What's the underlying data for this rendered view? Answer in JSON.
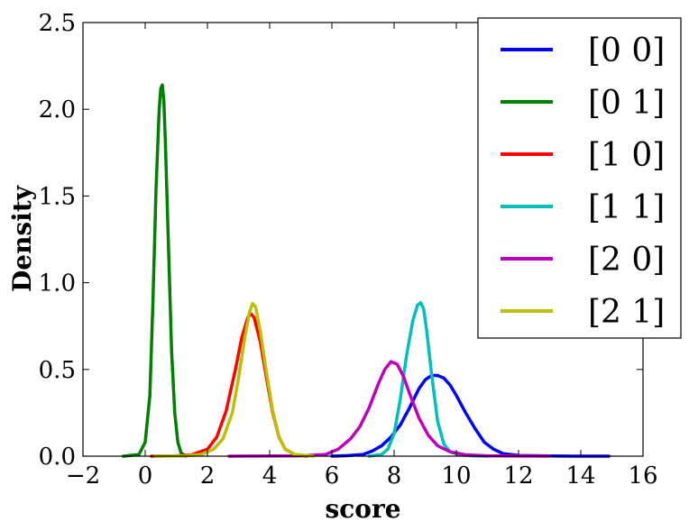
{
  "chart_data": {
    "type": "line",
    "title": "",
    "xlabel": "score",
    "ylabel": "Density",
    "xlim": [
      -2,
      16
    ],
    "ylim": [
      0,
      2.5
    ],
    "xticks": [
      -2,
      0,
      2,
      4,
      6,
      8,
      10,
      12,
      14,
      16
    ],
    "xtick_labels": [
      "−2",
      "0",
      "2",
      "4",
      "6",
      "8",
      "10",
      "12",
      "14",
      "16"
    ],
    "yticks": [
      0.0,
      0.5,
      1.0,
      1.5,
      2.0,
      2.5
    ],
    "ytick_labels": [
      "0.0",
      "0.5",
      "1.0",
      "1.5",
      "2.0",
      "2.5"
    ],
    "grid": false,
    "legend_position": "top-right",
    "series": [
      {
        "name": "[0 0]",
        "color": "#0000ff",
        "x": [
          6.0,
          6.5,
          7.0,
          7.3,
          7.6,
          7.9,
          8.2,
          8.5,
          8.8,
          9.0,
          9.2,
          9.4,
          9.6,
          9.8,
          10.0,
          10.3,
          10.6,
          10.9,
          11.2,
          11.5,
          12.0,
          13.0,
          14.0,
          14.9
        ],
        "y": [
          0.0,
          0.003,
          0.01,
          0.03,
          0.06,
          0.11,
          0.18,
          0.28,
          0.39,
          0.44,
          0.465,
          0.465,
          0.45,
          0.41,
          0.35,
          0.25,
          0.16,
          0.08,
          0.04,
          0.015,
          0.004,
          0.001,
          0.0,
          0.0
        ]
      },
      {
        "name": "[0 1]",
        "color": "#008000",
        "x": [
          -0.7,
          -0.2,
          0.0,
          0.15,
          0.25,
          0.35,
          0.45,
          0.5,
          0.55,
          0.6,
          0.65,
          0.75,
          0.85,
          0.95,
          1.05,
          1.15,
          1.3
        ],
        "y": [
          0.0,
          0.01,
          0.08,
          0.35,
          0.9,
          1.55,
          2.0,
          2.12,
          2.14,
          2.05,
          1.8,
          1.2,
          0.6,
          0.25,
          0.08,
          0.02,
          0.0
        ]
      },
      {
        "name": "[1 0]",
        "color": "#ff0000",
        "x": [
          0.2,
          1.0,
          1.5,
          2.0,
          2.3,
          2.6,
          2.9,
          3.1,
          3.3,
          3.4,
          3.5,
          3.7,
          3.9,
          4.1,
          4.3,
          4.5,
          4.8,
          5.2
        ],
        "y": [
          0.0,
          0.002,
          0.008,
          0.04,
          0.11,
          0.26,
          0.5,
          0.68,
          0.8,
          0.82,
          0.8,
          0.66,
          0.45,
          0.25,
          0.11,
          0.04,
          0.01,
          0.0
        ]
      },
      {
        "name": "[1 1]",
        "color": "#00bfbf",
        "x": [
          7.2,
          7.6,
          7.8,
          8.0,
          8.2,
          8.4,
          8.6,
          8.75,
          8.85,
          8.95,
          9.05,
          9.2,
          9.4,
          9.6,
          9.8,
          10.1,
          10.5,
          11.0
        ],
        "y": [
          0.0,
          0.01,
          0.04,
          0.13,
          0.33,
          0.58,
          0.78,
          0.87,
          0.885,
          0.85,
          0.72,
          0.48,
          0.2,
          0.07,
          0.025,
          0.008,
          0.002,
          0.0
        ]
      },
      {
        "name": "[2 0]",
        "color": "#bf00bf",
        "x": [
          2.7,
          5.0,
          5.8,
          6.2,
          6.6,
          6.9,
          7.2,
          7.5,
          7.7,
          7.9,
          8.1,
          8.3,
          8.5,
          8.8,
          9.1,
          9.4,
          9.8,
          10.3,
          11.0,
          13.0
        ],
        "y": [
          0.0,
          0.002,
          0.01,
          0.04,
          0.1,
          0.17,
          0.28,
          0.42,
          0.5,
          0.545,
          0.53,
          0.46,
          0.36,
          0.22,
          0.12,
          0.06,
          0.025,
          0.008,
          0.002,
          0.0
        ]
      },
      {
        "name": "[2 1]",
        "color": "#bfbf00",
        "x": [
          0.3,
          1.3,
          1.8,
          2.2,
          2.5,
          2.8,
          3.0,
          3.2,
          3.35,
          3.45,
          3.55,
          3.7,
          3.9,
          4.1,
          4.3,
          4.5,
          4.8,
          5.4
        ],
        "y": [
          0.0,
          0.002,
          0.01,
          0.04,
          0.1,
          0.25,
          0.45,
          0.68,
          0.83,
          0.88,
          0.86,
          0.72,
          0.48,
          0.26,
          0.11,
          0.04,
          0.01,
          0.0
        ]
      }
    ]
  }
}
